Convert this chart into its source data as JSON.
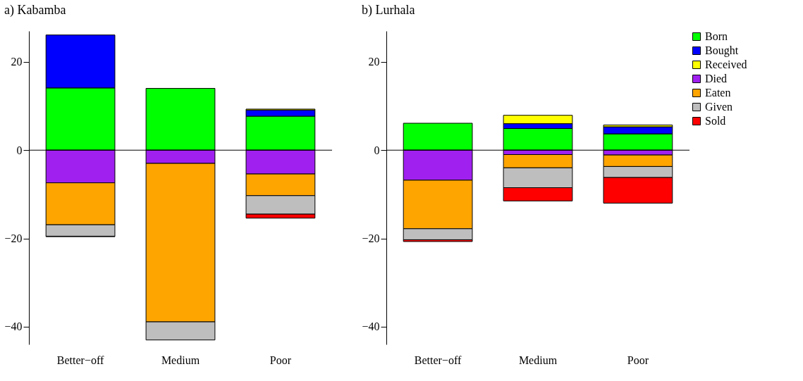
{
  "chart_data": [
    {
      "type": "bar",
      "title": "a) Kabamba",
      "stacked": true,
      "categories": [
        "Better−off",
        "Medium",
        "Poor"
      ],
      "ylim": [
        -44,
        27
      ],
      "yticks": [
        -40,
        -20,
        0,
        20
      ],
      "grid": false,
      "legend": false,
      "ref_lines": [
        {
          "axis": "y",
          "value": 0
        }
      ],
      "series": [
        {
          "color": "#00ff00",
          "values": [
            14.1,
            14.0,
            7.7
          ]
        },
        {
          "color": "#0000ff",
          "values": [
            12.0,
            null,
            1.4
          ]
        },
        {
          "color": "#ffff00",
          "values": [
            null,
            null,
            0.2
          ]
        },
        {
          "color": "#a020f0",
          "values": [
            -7.4,
            -3.0,
            -5.4
          ]
        },
        {
          "color": "#ffa500",
          "values": [
            -9.5,
            -35.9,
            -4.9
          ]
        },
        {
          "color": "#bebebe",
          "values": [
            -2.6,
            -4.1,
            -4.2
          ]
        },
        {
          "color": "#ff0000",
          "values": [
            -0.1,
            null,
            -0.9
          ]
        }
      ]
    },
    {
      "type": "bar",
      "title": "b) Lurhala",
      "stacked": true,
      "categories": [
        "Better−off",
        "Medium",
        "Poor"
      ],
      "ylim": [
        -44,
        27
      ],
      "yticks": [
        -40,
        -20,
        0,
        20
      ],
      "grid": false,
      "legend": "top right",
      "ref_lines": [
        {
          "axis": "y",
          "value": 0
        }
      ],
      "series": [
        {
          "name": "Born",
          "color": "#00ff00",
          "values": [
            6.1,
            4.9,
            3.7
          ]
        },
        {
          "name": "Bought",
          "color": "#0000ff",
          "values": [
            null,
            1.1,
            1.6
          ]
        },
        {
          "name": "Received",
          "color": "#ffff00",
          "values": [
            null,
            1.9,
            0.4
          ]
        },
        {
          "name": "Died",
          "color": "#a020f0",
          "values": [
            -6.8,
            -1.0,
            -1.1
          ]
        },
        {
          "name": "Eaten",
          "color": "#ffa500",
          "values": [
            -11.0,
            -3.0,
            -2.6
          ]
        },
        {
          "name": "Given",
          "color": "#bebebe",
          "values": [
            -2.5,
            -4.5,
            -2.5
          ]
        },
        {
          "name": "Sold",
          "color": "#ff0000",
          "values": [
            -0.4,
            -3.0,
            -5.8
          ]
        }
      ]
    }
  ]
}
